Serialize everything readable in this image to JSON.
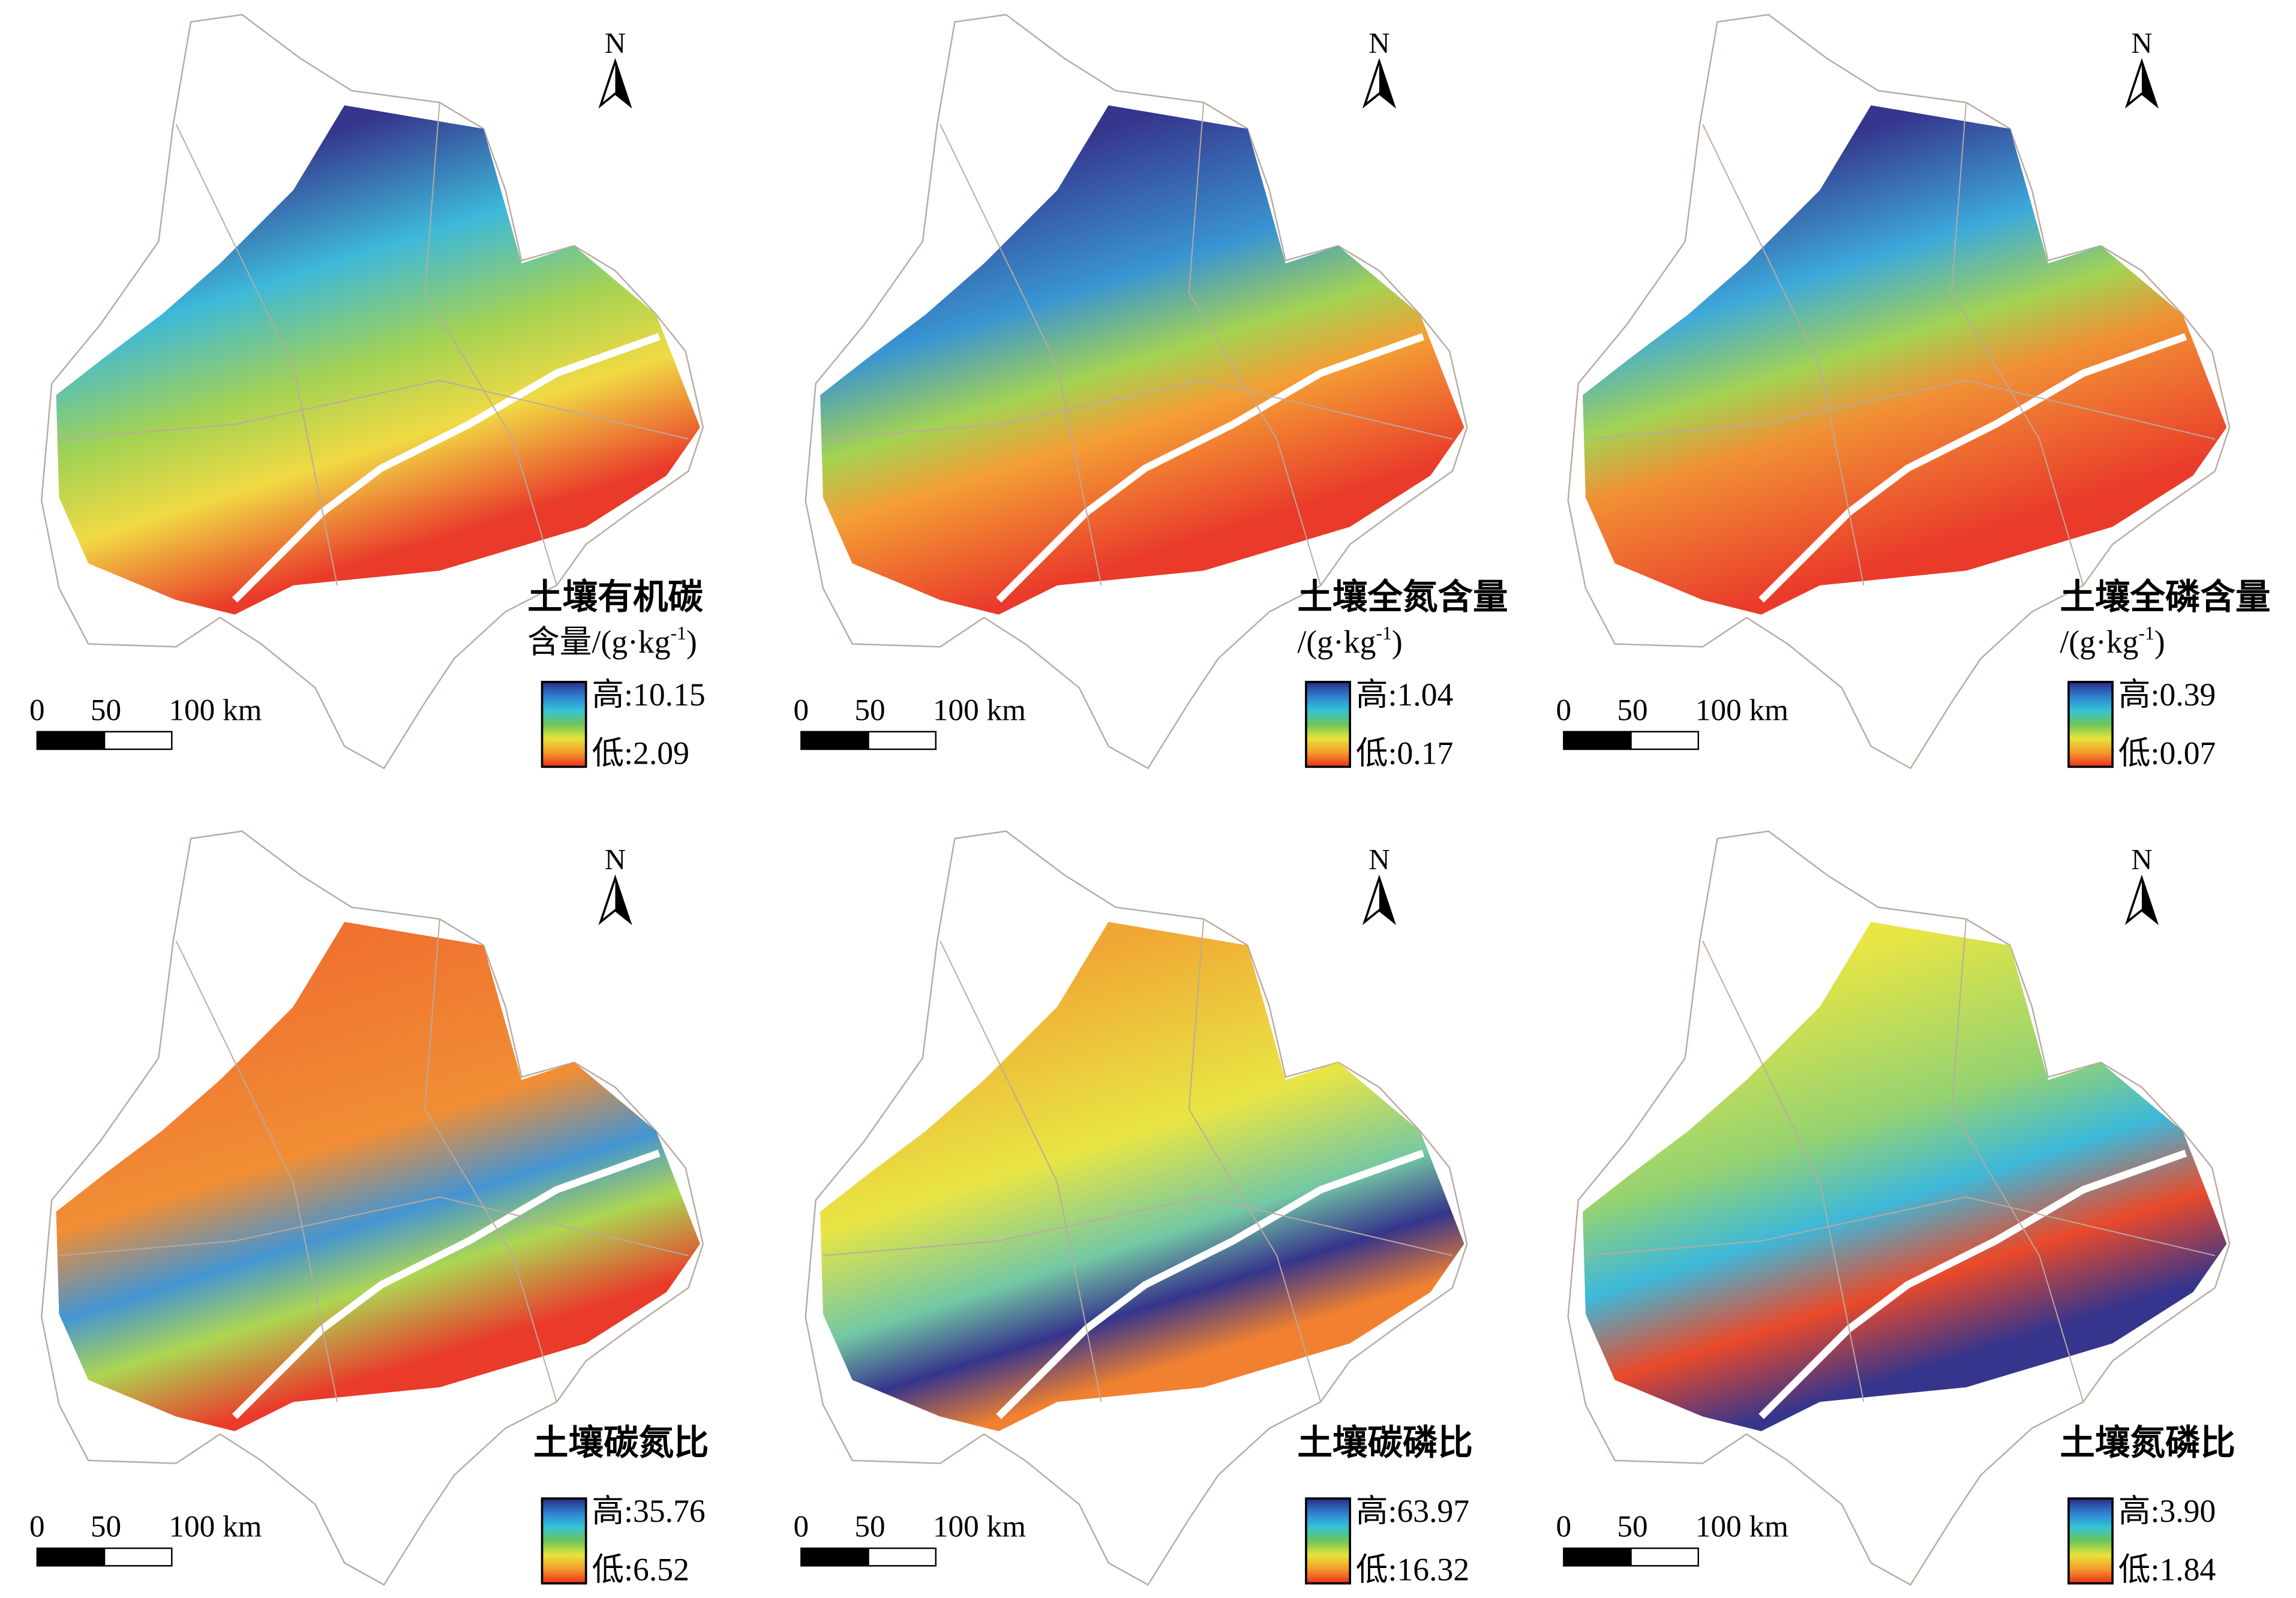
{
  "north": "N",
  "scale": [
    "0",
    "50",
    "100 km"
  ],
  "panels": [
    {
      "title": "土壤有机碳",
      "unit": {
        "text": "含量/(g·kg",
        "sup": "-1",
        "end": ")"
      },
      "high": "高:10.15",
      "low": "低:2.09"
    },
    {
      "title": "土壤全氮含量",
      "unit": {
        "text": "/(g·kg",
        "sup": "-1",
        "end": ")"
      },
      "high": "高:1.04",
      "low": "低:0.17"
    },
    {
      "title": "土壤全磷含量",
      "unit": {
        "text": "/(g·kg",
        "sup": "-1",
        "end": ")"
      },
      "high": "高:0.39",
      "low": "低:0.07"
    },
    {
      "title": "土壤碳氮比",
      "high": "高:35.76",
      "low": "低:6.52"
    },
    {
      "title": "土壤碳磷比",
      "high": "高:63.97",
      "low": "低:16.32"
    },
    {
      "title": "土壤氮磷比",
      "high": "高:3.90",
      "low": "低:1.84"
    }
  ]
}
